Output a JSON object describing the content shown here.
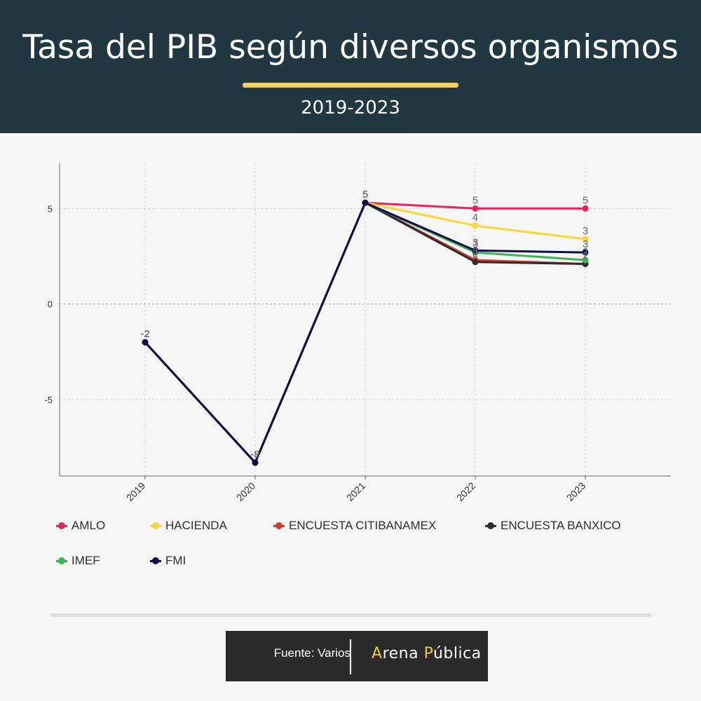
{
  "header": {
    "title": "Tasa del PIB según diversos organismos",
    "subtitle": "2019-2023",
    "background": "#213742",
    "accent": "#f4cf6f"
  },
  "chart_data": {
    "type": "line",
    "title": "",
    "xlabel": "",
    "ylabel": "",
    "x": [
      "2019",
      "2020",
      "2021",
      "2022",
      "2023"
    ],
    "ylim": [
      -9,
      7.4
    ],
    "yticks": [
      5,
      0,
      -5
    ],
    "grid": true,
    "legend_position": "bottom",
    "series": [
      {
        "name": "AMLO",
        "color": "#e8255a",
        "values": [
          -2,
          -8.3,
          5.3,
          5,
          5
        ],
        "labels": [
          "-2",
          "-8",
          "5",
          "5",
          "5"
        ]
      },
      {
        "name": "HACIENDA",
        "color": "#fcd734",
        "values": [
          -2,
          -8.3,
          5.3,
          4.1,
          3.4
        ],
        "labels": [
          "-2",
          "-8",
          "5",
          "4",
          "3"
        ]
      },
      {
        "name": "ENCUESTA CITIBANAMEX",
        "color": "#d63a2c",
        "values": [
          -2,
          -8.3,
          5.3,
          2.3,
          2.1
        ],
        "labels": [
          "-2",
          "-8",
          "5",
          "2",
          "2"
        ]
      },
      {
        "name": "ENCUESTA BANXICO",
        "color": "#2d2d2d",
        "values": [
          -2,
          -8.3,
          5.3,
          2.2,
          2.1
        ],
        "labels": [
          "-2",
          "-8",
          "5",
          "2",
          "2"
        ]
      },
      {
        "name": "IMEF",
        "color": "#3cb554",
        "values": [
          -2,
          -8.3,
          5.3,
          2.7,
          2.3
        ],
        "labels": [
          "-2",
          "-8",
          "5",
          "3",
          "2"
        ]
      },
      {
        "name": "FMI",
        "color": "#0f0c4d",
        "values": [
          -2,
          -8.3,
          5.3,
          2.8,
          2.7
        ],
        "labels": [
          "-2",
          "-8",
          "5",
          "3",
          "3"
        ]
      }
    ]
  },
  "footer": {
    "source": "Fuente: Varios",
    "brand_first_letter": "A",
    "brand_first_rest": "rena ",
    "brand_second_letter": "P",
    "brand_second_rest": "ública"
  }
}
